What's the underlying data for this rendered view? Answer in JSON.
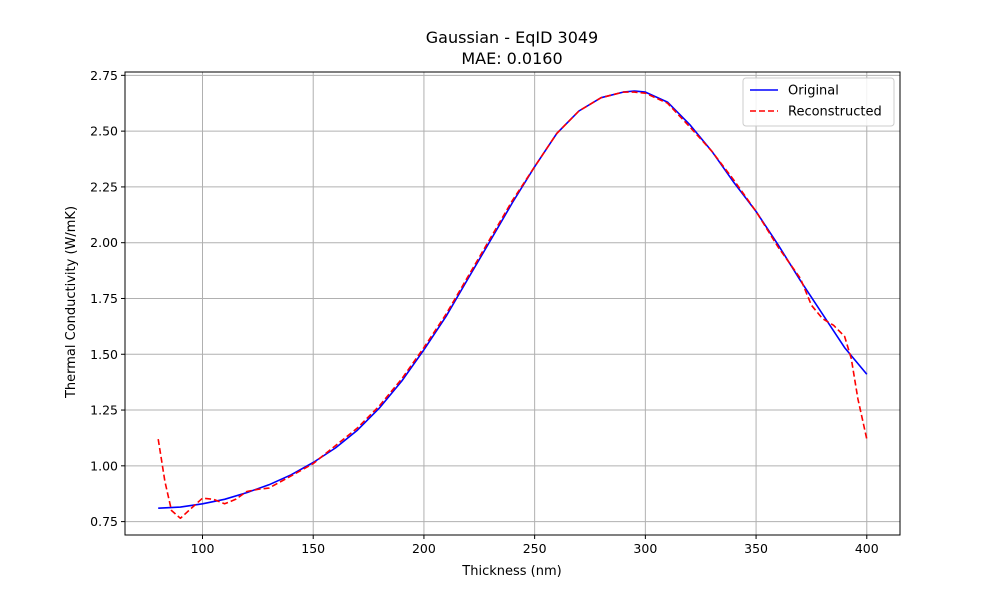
{
  "chart_data": {
    "type": "line",
    "title": "Gaussian - EqID 3049",
    "subtitle": "MAE: 0.0160",
    "xlabel": "Thickness (nm)",
    "ylabel": "Thermal Conductivity (W/mK)",
    "xlim": [
      65,
      415
    ],
    "ylim": [
      0.69,
      2.765
    ],
    "xticks": [
      100,
      150,
      200,
      250,
      300,
      350,
      400
    ],
    "yticks": [
      0.75,
      1.0,
      1.25,
      1.5,
      1.75,
      2.0,
      2.25,
      2.5,
      2.75
    ],
    "grid": true,
    "legend_position": "top-right",
    "series": [
      {
        "name": "Original",
        "color": "#0000ff",
        "style": "solid",
        "x": [
          80,
          90,
          100,
          110,
          120,
          130,
          140,
          150,
          160,
          170,
          180,
          190,
          200,
          210,
          220,
          230,
          240,
          250,
          260,
          270,
          280,
          290,
          295,
          300,
          310,
          320,
          330,
          340,
          350,
          360,
          370,
          380,
          390,
          400
        ],
        "y": [
          0.81,
          0.815,
          0.83,
          0.85,
          0.88,
          0.915,
          0.96,
          1.015,
          1.08,
          1.16,
          1.26,
          1.38,
          1.52,
          1.67,
          1.84,
          2.01,
          2.18,
          2.34,
          2.49,
          2.59,
          2.65,
          2.675,
          2.68,
          2.675,
          2.63,
          2.53,
          2.41,
          2.27,
          2.14,
          1.99,
          1.83,
          1.68,
          1.53,
          1.41
        ]
      },
      {
        "name": "Reconstructed",
        "color": "#ff0000",
        "style": "dashed",
        "x": [
          80,
          83,
          86,
          90,
          95,
          100,
          105,
          110,
          115,
          120,
          125,
          130,
          140,
          150,
          160,
          170,
          180,
          190,
          200,
          210,
          220,
          230,
          240,
          250,
          260,
          270,
          280,
          290,
          295,
          300,
          310,
          320,
          330,
          340,
          350,
          360,
          370,
          375,
          380,
          385,
          390,
          393,
          396,
          400
        ],
        "y": [
          1.12,
          0.93,
          0.8,
          0.765,
          0.81,
          0.855,
          0.85,
          0.83,
          0.85,
          0.885,
          0.895,
          0.9,
          0.955,
          1.01,
          1.09,
          1.17,
          1.27,
          1.39,
          1.53,
          1.68,
          1.85,
          2.02,
          2.19,
          2.34,
          2.49,
          2.59,
          2.65,
          2.675,
          2.675,
          2.67,
          2.625,
          2.52,
          2.41,
          2.28,
          2.14,
          1.98,
          1.84,
          1.72,
          1.66,
          1.63,
          1.58,
          1.48,
          1.3,
          1.12
        ]
      }
    ]
  }
}
